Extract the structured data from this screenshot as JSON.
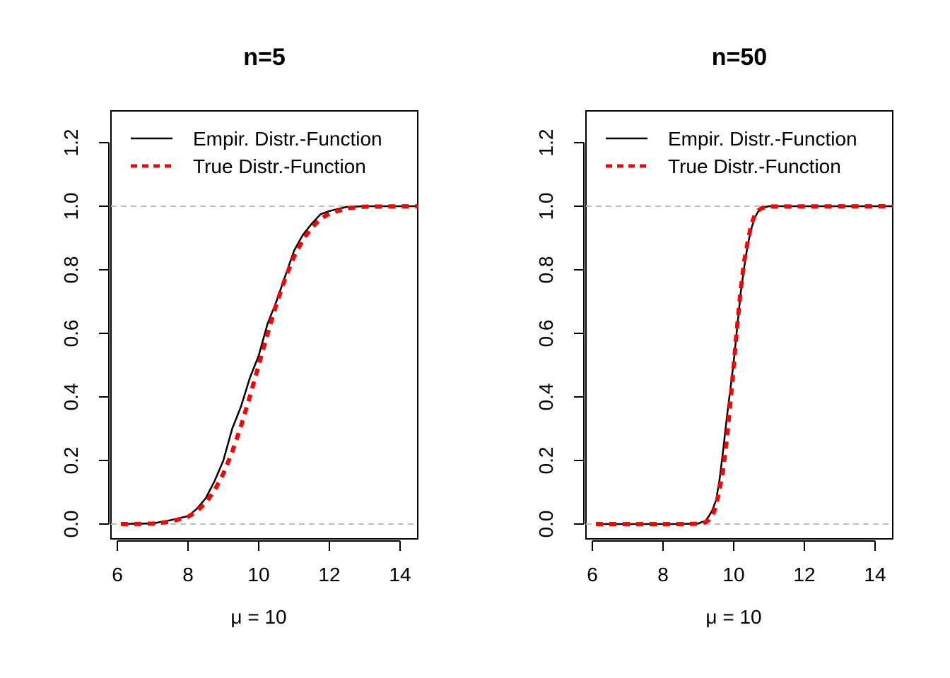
{
  "chart_data": [
    {
      "type": "line",
      "title": "n=5",
      "xlabel": "μ = 10",
      "ylabel": "",
      "xlim": [
        5.8,
        14.5
      ],
      "ylim": [
        -0.05,
        1.3
      ],
      "xticks": [
        "6",
        "8",
        "10",
        "12",
        "14"
      ],
      "yticks": [
        "0.0",
        "0.2",
        "0.4",
        "0.6",
        "0.8",
        "1.0",
        "1.2"
      ],
      "hlines": [
        0,
        1
      ],
      "legend_position": "top",
      "legend": [
        "Empir. Distr.-Function",
        "True Distr.-Function"
      ],
      "series": [
        {
          "name": "Empir. Distr.-Function",
          "color": "#000000",
          "style": "solid",
          "x": [
            6.1,
            6.5,
            7.0,
            7.5,
            8.0,
            8.25,
            8.5,
            8.75,
            9.0,
            9.25,
            9.5,
            9.75,
            10.0,
            10.25,
            10.5,
            10.75,
            11.0,
            11.25,
            11.5,
            11.75,
            12.0,
            12.5,
            13.0,
            14.5
          ],
          "y": [
            0.0,
            0.001,
            0.002,
            0.012,
            0.025,
            0.048,
            0.081,
            0.135,
            0.2,
            0.3,
            0.37,
            0.46,
            0.53,
            0.63,
            0.7,
            0.78,
            0.86,
            0.91,
            0.945,
            0.975,
            0.985,
            0.998,
            1.0,
            1.0
          ]
        },
        {
          "name": "True Distr.-Function",
          "color": "#ff0000",
          "style": "dashed",
          "x": [
            6.1,
            6.5,
            7.0,
            7.5,
            8.0,
            8.25,
            8.5,
            8.75,
            9.0,
            9.25,
            9.5,
            9.75,
            10.0,
            10.25,
            10.5,
            10.75,
            11.0,
            11.25,
            11.5,
            11.75,
            12.0,
            12.5,
            13.0,
            14.5
          ],
          "y": [
            0.0,
            0.0002,
            0.0013,
            0.0073,
            0.0228,
            0.0401,
            0.0668,
            0.1056,
            0.1587,
            0.2266,
            0.3085,
            0.4013,
            0.5,
            0.5987,
            0.6915,
            0.7734,
            0.8413,
            0.8944,
            0.9332,
            0.9599,
            0.9772,
            0.9938,
            0.9987,
            1.0
          ]
        }
      ]
    },
    {
      "type": "line",
      "title": "n=50",
      "xlabel": "μ = 10",
      "ylabel": "",
      "xlim": [
        5.8,
        14.5
      ],
      "ylim": [
        -0.05,
        1.3
      ],
      "xticks": [
        "6",
        "8",
        "10",
        "12",
        "14"
      ],
      "yticks": [
        "0.0",
        "0.2",
        "0.4",
        "0.6",
        "0.8",
        "1.0",
        "1.2"
      ],
      "hlines": [
        0,
        1
      ],
      "legend_position": "top",
      "legend": [
        "Empir. Distr.-Function",
        "True Distr.-Function"
      ],
      "series": [
        {
          "name": "Empir. Distr.-Function",
          "color": "#000000",
          "style": "solid",
          "x": [
            6.1,
            8.5,
            9.0,
            9.2,
            9.3,
            9.4,
            9.5,
            9.6,
            9.7,
            9.8,
            9.9,
            10.0,
            10.1,
            10.2,
            10.3,
            10.4,
            10.5,
            10.6,
            10.7,
            10.8,
            11.0,
            14.5
          ],
          "y": [
            0.0,
            0.0,
            0.002,
            0.01,
            0.025,
            0.045,
            0.075,
            0.14,
            0.23,
            0.33,
            0.42,
            0.51,
            0.62,
            0.73,
            0.81,
            0.88,
            0.93,
            0.965,
            0.985,
            0.995,
            1.0,
            1.0
          ]
        },
        {
          "name": "True Distr.-Function",
          "color": "#ff0000",
          "style": "dashed",
          "x": [
            6.1,
            8.5,
            9.0,
            9.2,
            9.3,
            9.4,
            9.5,
            9.6,
            9.7,
            9.8,
            9.9,
            10.0,
            10.1,
            10.2,
            10.3,
            10.4,
            10.5,
            10.6,
            10.7,
            10.8,
            11.0,
            14.5
          ],
          "y": [
            0.0,
            0.0,
            0.0008,
            0.0057,
            0.0131,
            0.0271,
            0.0569,
            0.1103,
            0.1714,
            0.2611,
            0.3759,
            0.5,
            0.6241,
            0.7389,
            0.8286,
            0.8897,
            0.9431,
            0.9729,
            0.9869,
            0.9943,
            0.9992,
            1.0
          ]
        }
      ]
    }
  ]
}
